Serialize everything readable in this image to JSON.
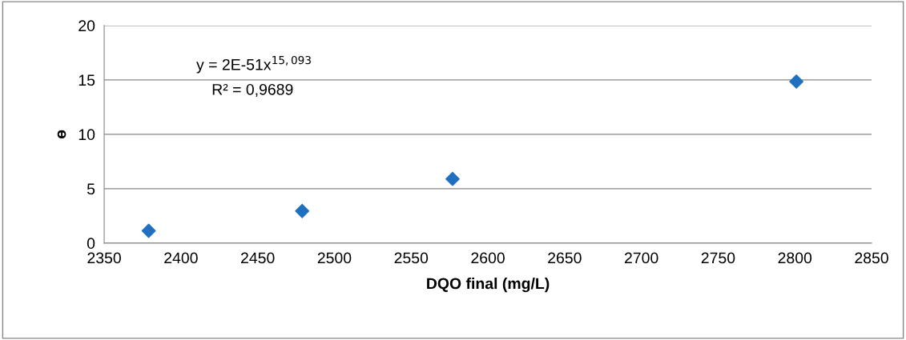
{
  "chart_data": {
    "type": "scatter",
    "xlabel": "DQO final (mg/L)",
    "ylabel": "ɵ",
    "x": [
      2379,
      2479,
      2577,
      2801
    ],
    "series": [
      {
        "color": "#2170c0",
        "values": [
          1.13,
          2.95,
          5.9,
          14.85
        ]
      }
    ],
    "marker": "diamond",
    "grid": "y",
    "legend": false,
    "xlim": [
      2350,
      2850
    ],
    "xticks": [
      2350,
      2400,
      2450,
      2500,
      2550,
      2600,
      2650,
      2700,
      2750,
      2800,
      2850
    ],
    "ylim": [
      0,
      20
    ],
    "yticks": [
      0,
      5,
      10,
      15,
      20
    ],
    "annotations": [
      "y = 2E-51x$^{15,093}$",
      "R² = 0,9689"
    ]
  }
}
